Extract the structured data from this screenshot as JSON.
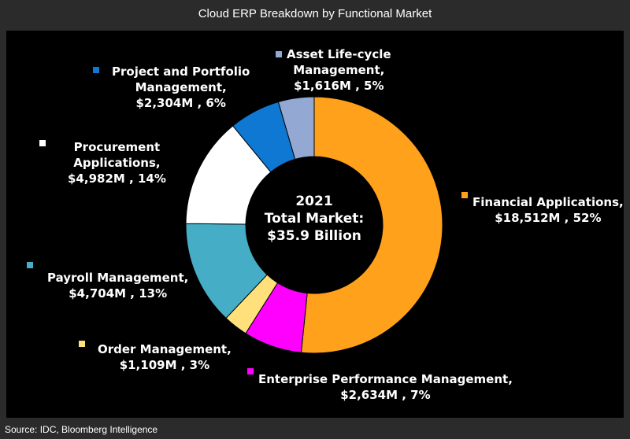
{
  "header": {
    "title": "Cloud ERP Breakdown by Functional Market"
  },
  "center": {
    "line1": "2021",
    "line2": "Total Market:",
    "line3": "$35.9 Billion"
  },
  "footer": {
    "source": "Source: IDC, Bloomberg Intelligence"
  },
  "chart_data": {
    "type": "pie",
    "donut": true,
    "title": "Cloud ERP Breakdown by Functional Market",
    "unit": "$M",
    "slices": [
      {
        "name": "Financial Applications",
        "value": 18512,
        "percent": 52,
        "color": "#ffa11a",
        "label_lines": [
          "Financial Applications,",
          "$18,512M , 52%"
        ]
      },
      {
        "name": "Enterprise Performance Management",
        "value": 2634,
        "percent": 7,
        "color": "#ff00ff",
        "label_lines": [
          "Enterprise Performance Management,",
          "$2,634M , 7%"
        ]
      },
      {
        "name": "Order Management",
        "value": 1109,
        "percent": 3,
        "color": "#ffe07a",
        "label_lines": [
          "Order Management,",
          "$1,109M , 3%"
        ]
      },
      {
        "name": "Payroll Management",
        "value": 4704,
        "percent": 13,
        "color": "#45adc6",
        "label_lines": [
          "Payroll Management,",
          "$4,704M , 13%"
        ]
      },
      {
        "name": "Procurement Applications",
        "value": 4982,
        "percent": 14,
        "color": "#ffffff",
        "label_lines": [
          "Procurement",
          "Applications,",
          "$4,982M , 14%"
        ]
      },
      {
        "name": "Project and Portfolio Management",
        "value": 2304,
        "percent": 6,
        "color": "#0f78d2",
        "label_lines": [
          "Project and Portfolio",
          "Management,",
          "$2,304M , 6%"
        ]
      },
      {
        "name": "Asset Life-cycle Management",
        "value": 1616,
        "percent": 5,
        "color": "#93a8d2",
        "label_lines": [
          "Asset Life-cycle",
          "Management,",
          "$1,616M , 5%"
        ]
      }
    ]
  }
}
